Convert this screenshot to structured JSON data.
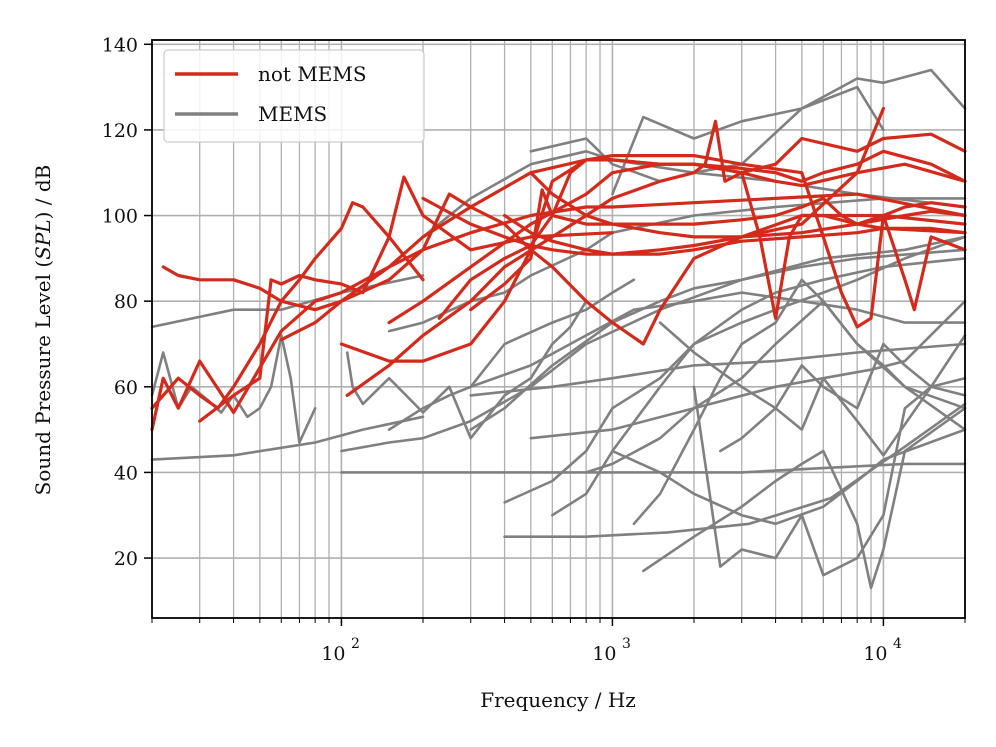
{
  "chart_data": {
    "type": "line",
    "xscale": "log",
    "xlim": [
      20,
      20000
    ],
    "ylim": [
      6,
      141
    ],
    "grid": true,
    "legend_position": "top-left",
    "xlabel": "Frequency / Hz",
    "ylabel_prefix": "Sound Pressure Level (",
    "ylabel_math": "SPL",
    "ylabel_suffix": ") / dB",
    "x_ticks": [
      {
        "value": 100,
        "base": "10",
        "exp": "2"
      },
      {
        "value": 1000,
        "base": "10",
        "exp": "3"
      },
      {
        "value": 10000,
        "base": "10",
        "exp": "4"
      }
    ],
    "y_ticks": [
      20,
      40,
      60,
      80,
      100,
      120,
      140
    ],
    "colors": {
      "not_mems": "#d42a1c",
      "mems": "#808080"
    },
    "legend": [
      {
        "label": "not MEMS",
        "color": "#d42a1c"
      },
      {
        "label": "MEMS",
        "color": "#808080"
      }
    ],
    "series": [
      {
        "group": "MEMS",
        "x": [
          20,
          40,
          80,
          120,
          200
        ],
        "y": [
          43,
          44,
          47,
          50,
          53
        ]
      },
      {
        "group": "MEMS",
        "x": [
          20,
          40,
          60,
          100,
          200
        ],
        "y": [
          74,
          78,
          78,
          82,
          86
        ]
      },
      {
        "group": "MEMS",
        "x": [
          20,
          22,
          25,
          28,
          32,
          36,
          40,
          45,
          50,
          55,
          60,
          65,
          70,
          80
        ],
        "y": [
          58,
          68,
          55,
          60,
          57,
          54,
          58,
          53,
          55,
          60,
          72,
          62,
          47,
          55
        ]
      },
      {
        "group": "MEMS",
        "x": [
          100,
          200,
          400,
          800,
          1600,
          3000,
          6000,
          12000,
          20000
        ],
        "y": [
          40,
          40,
          40,
          40,
          40,
          40,
          41,
          42,
          42
        ]
      },
      {
        "group": "MEMS",
        "x": [
          300,
          600,
          1000,
          2000,
          4000,
          8000,
          20000
        ],
        "y": [
          58,
          60,
          62,
          65,
          66,
          68,
          70
        ]
      },
      {
        "group": "MEMS",
        "x": [
          400,
          800,
          1600,
          3200,
          6400,
          12000,
          20000
        ],
        "y": [
          25,
          25,
          26,
          28,
          34,
          46,
          56
        ]
      },
      {
        "group": "MEMS",
        "x": [
          500,
          1000,
          2000,
          4000,
          6000,
          9000,
          12000,
          20000
        ],
        "y": [
          48,
          50,
          55,
          60,
          62,
          64,
          66,
          80
        ]
      },
      {
        "group": "MEMS",
        "x": [
          1000,
          1500,
          2000,
          3000,
          4000,
          6000,
          8000,
          10000,
          20000
        ],
        "y": [
          45,
          40,
          35,
          30,
          28,
          32,
          38,
          43,
          50
        ]
      },
      {
        "group": "MEMS",
        "x": [
          1300,
          2000,
          3000,
          4000,
          5000,
          6000,
          8000,
          9000,
          10000,
          12000,
          20000
        ],
        "y": [
          17,
          25,
          32,
          38,
          42,
          45,
          28,
          13,
          22,
          45,
          55
        ]
      },
      {
        "group": "MEMS",
        "x": [
          2000,
          2500,
          3000,
          4000,
          5000,
          6000,
          8000,
          10000,
          12000,
          15000,
          20000
        ],
        "y": [
          60,
          18,
          22,
          20,
          30,
          16,
          20,
          30,
          55,
          60,
          62
        ]
      },
      {
        "group": "MEMS",
        "x": [
          1000,
          1300,
          2000,
          3000,
          5000,
          8000,
          10000,
          15000,
          20000
        ],
        "y": [
          105,
          123,
          118,
          122,
          125,
          132,
          131,
          134,
          125
        ]
      },
      {
        "group": "MEMS",
        "x": [
          500,
          800,
          1000,
          1500,
          2000,
          3000,
          5000,
          8000,
          10000
        ],
        "y": [
          115,
          118,
          112,
          108,
          110,
          112,
          125,
          130,
          120
        ]
      },
      {
        "group": "MEMS",
        "x": [
          200,
          300,
          500,
          800,
          1000,
          2000,
          4000,
          8000,
          20000
        ],
        "y": [
          95,
          104,
          112,
          115,
          113,
          110,
          108,
          105,
          102
        ]
      },
      {
        "group": "MEMS",
        "x": [
          150,
          200,
          300,
          400,
          500,
          800,
          1000,
          2000,
          4000,
          10000,
          20000
        ],
        "y": [
          73,
          75,
          80,
          82,
          86,
          92,
          96,
          100,
          102,
          104,
          104
        ]
      },
      {
        "group": "MEMS",
        "x": [
          105,
          110,
          120,
          150,
          200,
          250,
          300,
          400,
          500,
          600,
          700,
          800
        ],
        "y": [
          68,
          60,
          56,
          62,
          54,
          60,
          48,
          58,
          62,
          70,
          74,
          80
        ]
      },
      {
        "group": "MEMS",
        "x": [
          300,
          400,
          600,
          1000,
          1500,
          2000,
          3000,
          5000,
          8000,
          20000
        ],
        "y": [
          50,
          55,
          65,
          75,
          80,
          83,
          85,
          88,
          90,
          92
        ]
      },
      {
        "group": "MEMS",
        "x": [
          600,
          800,
          1000,
          1500,
          2000,
          3000,
          4000,
          6000,
          10000,
          20000
        ],
        "y": [
          30,
          35,
          45,
          60,
          70,
          78,
          82,
          85,
          88,
          90
        ]
      },
      {
        "group": "MEMS",
        "x": [
          800,
          1000,
          1500,
          2000,
          3000,
          4000,
          6000,
          8000,
          12000,
          20000
        ],
        "y": [
          40,
          42,
          48,
          55,
          62,
          70,
          80,
          70,
          60,
          50
        ]
      },
      {
        "group": "MEMS",
        "x": [
          400,
          600,
          800,
          1000,
          1500,
          2000,
          3000,
          4000,
          6000,
          8000,
          12000,
          20000
        ],
        "y": [
          33,
          38,
          45,
          55,
          62,
          70,
          75,
          78,
          82,
          85,
          90,
          95
        ]
      },
      {
        "group": "MEMS",
        "x": [
          1500,
          2000,
          3000,
          4000,
          5000,
          6000,
          8000,
          10000,
          15000,
          20000
        ],
        "y": [
          75,
          68,
          60,
          55,
          50,
          62,
          52,
          44,
          60,
          58
        ]
      },
      {
        "group": "MEMS",
        "x": [
          300,
          500,
          800,
          1200,
          2000,
          3000,
          5000,
          8000,
          12000,
          20000
        ],
        "y": [
          60,
          65,
          72,
          78,
          80,
          82,
          80,
          78,
          75,
          75
        ]
      },
      {
        "group": "MEMS",
        "x": [
          150,
          200,
          250,
          300,
          400,
          600,
          800,
          1000,
          1200
        ],
        "y": [
          50,
          55,
          58,
          60,
          70,
          75,
          78,
          82,
          85
        ]
      },
      {
        "group": "MEMS",
        "x": [
          100,
          150,
          200,
          300,
          500,
          800,
          1500,
          3000,
          6000,
          12000,
          20000
        ],
        "y": [
          45,
          47,
          48,
          52,
          60,
          70,
          78,
          85,
          90,
          92,
          95
        ]
      },
      {
        "group": "MEMS",
        "x": [
          1200,
          1500,
          2000,
          2500,
          3000,
          4000,
          5000,
          6000,
          8000,
          10000,
          12000,
          20000
        ],
        "y": [
          28,
          35,
          50,
          62,
          70,
          75,
          85,
          80,
          70,
          65,
          60,
          55
        ]
      },
      {
        "group": "MEMS",
        "x": [
          2500,
          3000,
          4000,
          5000,
          6000,
          8000,
          10000,
          12000,
          15000,
          20000
        ],
        "y": [
          45,
          48,
          55,
          65,
          60,
          55,
          70,
          65,
          60,
          72
        ]
      },
      {
        "group": "not MEMS",
        "x": [
          20,
          22,
          25,
          30,
          40,
          60,
          80,
          100,
          150,
          200,
          300,
          500,
          800,
          1000,
          2000,
          4000,
          8000,
          20000
        ],
        "y": [
          50,
          62,
          55,
          66,
          54,
          73,
          80,
          82,
          88,
          92,
          96,
          100,
          102,
          102,
          103,
          104,
          105,
          100
        ]
      },
      {
        "group": "not MEMS",
        "x": [
          22,
          25,
          30,
          40,
          50,
          60,
          80,
          100,
          150,
          200,
          300,
          500,
          800,
          1000,
          1500,
          2000,
          3000,
          4000,
          5000,
          6000,
          8000,
          10000,
          15000,
          20000
        ],
        "y": [
          88,
          86,
          85,
          85,
          83,
          80,
          78,
          80,
          88,
          95,
          102,
          110,
          113,
          113,
          112,
          112,
          111,
          110,
          108,
          110,
          112,
          115,
          112,
          108
        ]
      },
      {
        "group": "not MEMS",
        "x": [
          20,
          25,
          30,
          35,
          40,
          50,
          60,
          70,
          80,
          100,
          110,
          120,
          150,
          200
        ],
        "y": [
          55,
          62,
          58,
          55,
          60,
          70,
          80,
          85,
          90,
          97,
          103,
          102,
          95,
          85
        ]
      },
      {
        "group": "not MEMS",
        "x": [
          30,
          40,
          50,
          55,
          60,
          70,
          80,
          100,
          120,
          150,
          170,
          200,
          300,
          500,
          1000
        ],
        "y": [
          52,
          58,
          62,
          85,
          84,
          86,
          85,
          84,
          82,
          95,
          109,
          100,
          92,
          95,
          96
        ]
      },
      {
        "group": "not MEMS",
        "x": [
          60,
          80,
          100,
          150,
          200,
          250,
          300,
          400,
          500,
          600,
          800,
          1000,
          1300,
          1500,
          2000,
          3000,
          5000,
          10000,
          20000
        ],
        "y": [
          71,
          75,
          80,
          85,
          92,
          105,
          102,
          98,
          92,
          88,
          80,
          75,
          70,
          78,
          90,
          95,
          100,
          100,
          98
        ]
      },
      {
        "group": "not MEMS",
        "x": [
          100,
          150,
          200,
          300,
          400,
          500,
          600,
          800,
          1000,
          1500,
          2000,
          3000,
          4000,
          5000,
          8000,
          12000,
          20000
        ],
        "y": [
          70,
          66,
          66,
          70,
          80,
          92,
          108,
          113,
          113,
          112,
          112,
          110,
          108,
          107,
          110,
          112,
          108
        ]
      },
      {
        "group": "not MEMS",
        "x": [
          105,
          150,
          200,
          300,
          400,
          600,
          800,
          1000,
          1500,
          2000,
          2200,
          2400,
          2600,
          3000,
          4000,
          5000,
          8000,
          10000,
          15000,
          20000
        ],
        "y": [
          58,
          65,
          72,
          80,
          88,
          95,
          100,
          104,
          108,
          110,
          112,
          122,
          108,
          110,
          112,
          118,
          115,
          118,
          119,
          115
        ]
      },
      {
        "group": "not MEMS",
        "x": [
          150,
          200,
          300,
          500,
          800,
          1000,
          1500,
          2000,
          3000,
          3500,
          4000,
          4500,
          5000,
          6000,
          8000,
          10000,
          20000
        ],
        "y": [
          75,
          80,
          88,
          98,
          105,
          110,
          112,
          112,
          110,
          95,
          76,
          95,
          100,
          100,
          98,
          97,
          96
        ]
      },
      {
        "group": "not MEMS",
        "x": [
          230,
          300,
          400,
          500,
          600,
          700,
          800,
          1000,
          1500,
          2000,
          3000,
          5000,
          6000,
          7000,
          8000,
          9000,
          10000,
          12000,
          15000,
          20000
        ],
        "y": [
          76,
          85,
          90,
          93,
          100,
          110,
          113,
          114,
          114,
          114,
          112,
          110,
          95,
          82,
          74,
          76,
          100,
          102,
          103,
          102
        ]
      },
      {
        "group": "not MEMS",
        "x": [
          300,
          400,
          500,
          550,
          600,
          800,
          1000,
          2000,
          3000,
          4000,
          5000,
          6000,
          7000,
          8000,
          10000,
          12000,
          13000,
          15000,
          20000
        ],
        "y": [
          78,
          84,
          90,
          106,
          100,
          98,
          98,
          98,
          99,
          100,
          102,
          104,
          100,
          98,
          100,
          85,
          78,
          95,
          92
        ]
      },
      {
        "group": "not MEMS",
        "x": [
          400,
          500,
          600,
          800,
          1000,
          1500,
          2000,
          3000,
          5000,
          8000,
          10000,
          15000,
          20000
        ],
        "y": [
          100,
          96,
          94,
          92,
          91,
          91,
          92,
          94,
          95,
          96,
          97,
          97,
          96
        ]
      },
      {
        "group": "not MEMS",
        "x": [
          200,
          300,
          400,
          500,
          600,
          800,
          1000,
          1500,
          2000,
          3000,
          5000,
          8000,
          10000
        ],
        "y": [
          104,
          98,
          95,
          93,
          92,
          91,
          91,
          92,
          93,
          95,
          98,
          110,
          125
        ]
      },
      {
        "group": "not MEMS",
        "x": [
          500,
          600,
          800,
          1000,
          1500,
          2000,
          3000,
          5000,
          8000,
          12000,
          15000,
          20000
        ],
        "y": [
          110,
          105,
          100,
          98,
          96,
          95,
          95,
          96,
          98,
          100,
          101,
          100
        ]
      }
    ]
  }
}
